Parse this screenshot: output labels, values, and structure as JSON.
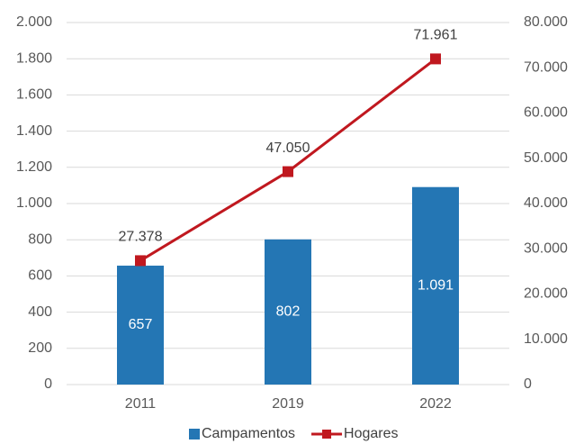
{
  "chart_data": {
    "type": "bar",
    "categories": [
      "2011",
      "2019",
      "2022"
    ],
    "series": [
      {
        "name": "Campamentos",
        "type": "bar",
        "color": "#2476b4",
        "values": [
          657,
          802,
          1091
        ],
        "value_labels": [
          "657",
          "802",
          "1.091"
        ]
      },
      {
        "name": "Hogares",
        "type": "line",
        "axis": "y2",
        "color": "#c0181f",
        "values": [
          27378,
          47050,
          71961
        ],
        "value_labels": [
          "27.378",
          "47.050",
          "71.961"
        ]
      }
    ],
    "ylim": [
      0,
      2000
    ],
    "yticks": [
      0,
      200,
      400,
      600,
      800,
      {
        "value": 1000,
        "label": "1.000"
      },
      {
        "value": 1200,
        "label": "1.200"
      },
      {
        "value": 1400,
        "label": "1.400"
      },
      {
        "value": 1600,
        "label": "1.600"
      },
      {
        "value": 1800,
        "label": "1.800"
      },
      {
        "value": 2000,
        "label": "2.000"
      }
    ],
    "y2lim": [
      0,
      80000
    ],
    "y2ticks": [
      0,
      {
        "value": 10000,
        "label": "10.000"
      },
      {
        "value": 20000,
        "label": "20.000"
      },
      {
        "value": 30000,
        "label": "30.000"
      },
      {
        "value": 40000,
        "label": "40.000"
      },
      {
        "value": 50000,
        "label": "50.000"
      },
      {
        "value": 60000,
        "label": "60.000"
      },
      {
        "value": 70000,
        "label": "70.000"
      },
      {
        "value": 80000,
        "label": "80.000"
      }
    ],
    "grid": true,
    "legend": "bottom"
  }
}
